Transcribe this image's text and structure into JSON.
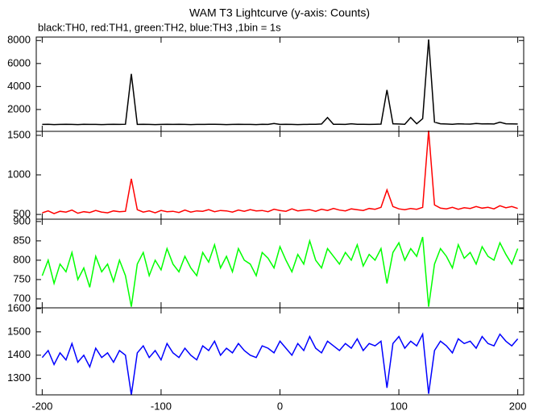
{
  "chart_data": {
    "type": "line",
    "title": "WAM T3 Lightcurve (y-axis: Counts)",
    "subtitle": "black:TH0, red:TH1, green:TH2, blue:TH3 ,1bin = 1s",
    "x": [
      -200,
      -195,
      -190,
      -185,
      -180,
      -175,
      -170,
      -165,
      -160,
      -155,
      -150,
      -145,
      -140,
      -135,
      -130,
      -125,
      -120,
      -115,
      -110,
      -105,
      -100,
      -95,
      -90,
      -85,
      -80,
      -75,
      -70,
      -65,
      -60,
      -55,
      -50,
      -45,
      -40,
      -35,
      -30,
      -25,
      -20,
      -15,
      -10,
      -5,
      0,
      5,
      10,
      15,
      20,
      25,
      30,
      35,
      40,
      45,
      50,
      55,
      60,
      65,
      70,
      75,
      80,
      85,
      90,
      95,
      100,
      105,
      110,
      115,
      120,
      125,
      130,
      135,
      140,
      145,
      150,
      155,
      160,
      165,
      170,
      175,
      180,
      185,
      190,
      195,
      200
    ],
    "xlim": [
      -205,
      205
    ],
    "xticks": [
      -200,
      -100,
      0,
      100,
      200
    ],
    "panels": [
      {
        "ylim": [
          100,
          8300
        ],
        "yticks": [
          2000,
          4000,
          6000,
          8000
        ],
        "series": [
          {
            "color": "#000000",
            "values": [
              700,
              710,
              690,
              700,
              720,
              700,
              690,
              710,
              700,
              700,
              690,
              700,
              710,
              700,
              720,
              5100,
              700,
              710,
              700,
              690,
              700,
              720,
              700,
              710,
              700,
              690,
              700,
              700,
              710,
              720,
              700,
              690,
              700,
              710,
              700,
              700,
              690,
              710,
              700,
              780,
              700,
              710,
              700,
              690,
              700,
              710,
              720,
              740,
              1300,
              720,
              710,
              700,
              760,
              720,
              710,
              700,
              720,
              730,
              3700,
              760,
              740,
              720,
              1300,
              760,
              1200,
              8100,
              900,
              760,
              740,
              720,
              760,
              740,
              730,
              780,
              750,
              760,
              740,
              900,
              760,
              750,
              740
            ]
          }
        ]
      },
      {
        "ylim": [
          440,
          1550
        ],
        "yticks": [
          500,
          1000,
          1500
        ],
        "series": [
          {
            "color": "#ff0000",
            "values": [
              520,
              545,
              510,
              540,
              530,
              555,
              515,
              535,
              525,
              550,
              530,
              520,
              545,
              535,
              540,
              950,
              560,
              530,
              545,
              520,
              550,
              535,
              540,
              525,
              555,
              530,
              545,
              540,
              560,
              535,
              550,
              545,
              530,
              555,
              540,
              560,
              545,
              550,
              535,
              565,
              550,
              540,
              570,
              545,
              555,
              560,
              540,
              565,
              550,
              575,
              555,
              545,
              570,
              560,
              550,
              575,
              565,
              590,
              810,
              600,
              570,
              560,
              575,
              565,
              590,
              1560,
              620,
              580,
              570,
              590,
              565,
              585,
              575,
              600,
              580,
              590,
              570,
              610,
              585,
              600,
              575
            ]
          }
        ]
      },
      {
        "ylim": [
          677,
          906
        ],
        "yticks": [
          700,
          750,
          800,
          850,
          900
        ],
        "series": [
          {
            "color": "#00ff00",
            "values": [
              760,
              800,
              740,
              790,
              770,
              820,
              750,
              780,
              730,
              810,
              770,
              790,
              745,
              800,
              760,
              680,
              790,
              820,
              760,
              800,
              775,
              830,
              790,
              770,
              810,
              780,
              760,
              820,
              795,
              840,
              780,
              810,
              770,
              830,
              800,
              790,
              760,
              820,
              805,
              780,
              835,
              800,
              770,
              815,
              790,
              850,
              800,
              780,
              830,
              810,
              790,
              820,
              800,
              840,
              785,
              815,
              800,
              830,
              740,
              820,
              845,
              800,
              830,
              810,
              860,
              680,
              790,
              830,
              810,
              780,
              840,
              805,
              820,
              790,
              835,
              810,
              800,
              845,
              815,
              790,
              830
            ]
          }
        ]
      },
      {
        "ylim": [
          1230,
          1603
        ],
        "yticks": [
          1300,
          1400,
          1500,
          1600
        ],
        "series": [
          {
            "color": "#0000ff",
            "values": [
              1390,
              1420,
              1360,
              1410,
              1380,
              1450,
              1370,
              1400,
              1350,
              1430,
              1390,
              1410,
              1370,
              1420,
              1400,
              1230,
              1410,
              1440,
              1390,
              1420,
              1380,
              1450,
              1410,
              1390,
              1430,
              1400,
              1380,
              1440,
              1420,
              1460,
              1400,
              1430,
              1410,
              1450,
              1420,
              1400,
              1390,
              1440,
              1430,
              1410,
              1460,
              1430,
              1400,
              1450,
              1420,
              1480,
              1430,
              1410,
              1460,
              1440,
              1420,
              1450,
              1430,
              1470,
              1420,
              1450,
              1440,
              1460,
              1260,
              1450,
              1480,
              1430,
              1460,
              1440,
              1490,
              1235,
              1420,
              1460,
              1440,
              1410,
              1470,
              1450,
              1460,
              1430,
              1480,
              1450,
              1440,
              1490,
              1460,
              1440,
              1470
            ]
          }
        ]
      }
    ]
  }
}
